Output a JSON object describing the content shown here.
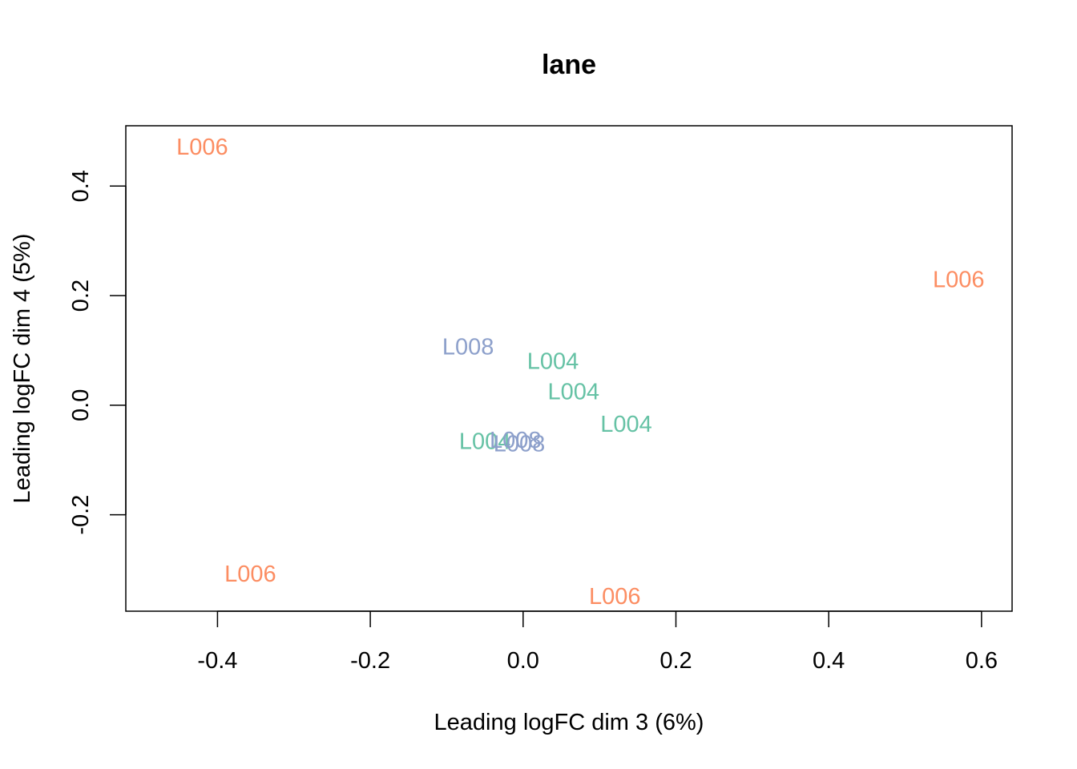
{
  "chart_data": {
    "type": "scatter",
    "title": "lane",
    "xlabel": "Leading logFC dim 3 (6%)",
    "ylabel": "Leading logFC dim 4 (5%)",
    "xlim": [
      -0.52,
      0.64
    ],
    "ylim": [
      -0.376,
      0.51
    ],
    "x_ticks": [
      "-0.4",
      "-0.2",
      "0.0",
      "0.2",
      "0.4",
      "0.6"
    ],
    "y_ticks": [
      "-0.2",
      "0.0",
      "0.2",
      "0.4"
    ],
    "grid": false,
    "colors": {
      "L004": "#66C2A5",
      "L006": "#FC8D62",
      "L008": "#8DA0CB"
    },
    "points": [
      {
        "label": "L006",
        "x": -0.42,
        "y": 0.472
      },
      {
        "label": "L006",
        "x": 0.57,
        "y": 0.23
      },
      {
        "label": "L006",
        "x": -0.357,
        "y": -0.307
      },
      {
        "label": "L006",
        "x": 0.12,
        "y": -0.348
      },
      {
        "label": "L008",
        "x": -0.072,
        "y": 0.107
      },
      {
        "label": "L004",
        "x": 0.039,
        "y": 0.081
      },
      {
        "label": "L004",
        "x": 0.066,
        "y": 0.025
      },
      {
        "label": "L004",
        "x": 0.135,
        "y": -0.034
      },
      {
        "label": "L004",
        "x": -0.05,
        "y": -0.065
      },
      {
        "label": "L008",
        "x": -0.01,
        "y": -0.063
      },
      {
        "label": "L008",
        "x": -0.005,
        "y": -0.07
      }
    ]
  }
}
